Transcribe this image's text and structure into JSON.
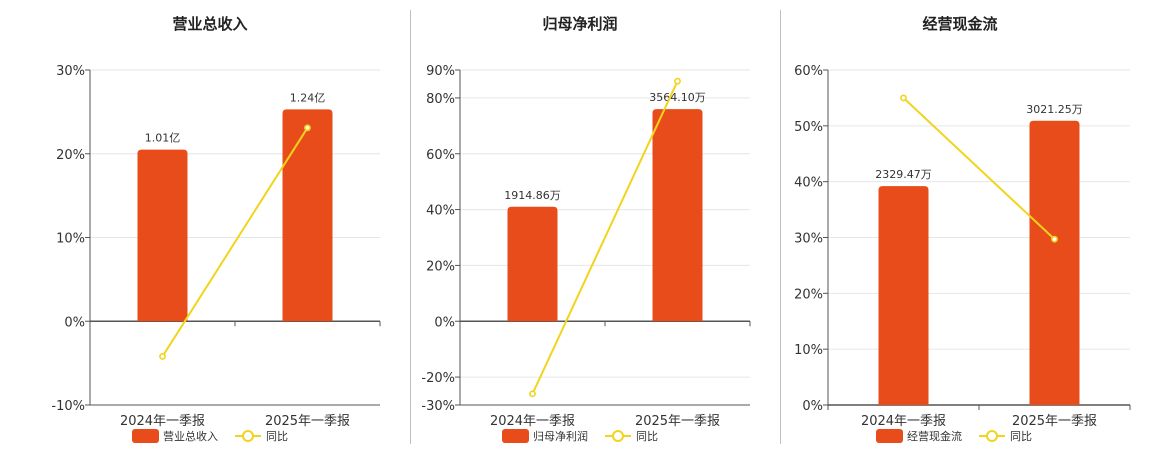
{
  "colors": {
    "bar": "#e84c1a",
    "line": "#f2d41c",
    "axis": "#555555",
    "grid": "#e6e6e6"
  },
  "chart_data": [
    {
      "type": "bar",
      "title": "营业总收入",
      "categories": [
        "2024年一季报",
        "2025年一季报"
      ],
      "series": [
        {
          "name": "营业总收入",
          "type": "bar",
          "values": [
            20.5,
            25.3
          ],
          "labels": [
            "1.01亿",
            "1.24亿"
          ]
        },
        {
          "name": "同比",
          "type": "line",
          "values": [
            -4.2,
            23.1
          ]
        }
      ],
      "ylim": [
        -10,
        30
      ],
      "yticks": [
        -10,
        0,
        10,
        20,
        30
      ],
      "ytick_labels": [
        "-10%",
        "0%",
        "10%",
        "20%",
        "30%"
      ],
      "grid": true,
      "legend": "bottom"
    },
    {
      "type": "bar",
      "title": "归母净利润",
      "categories": [
        "2024年一季报",
        "2025年一季报"
      ],
      "series": [
        {
          "name": "归母净利润",
          "type": "bar",
          "values": [
            41,
            76
          ],
          "labels": [
            "1914.86万",
            "3564.10万"
          ]
        },
        {
          "name": "同比",
          "type": "line",
          "values": [
            -26,
            86
          ]
        }
      ],
      "ylim": [
        -30,
        90
      ],
      "yticks": [
        -30,
        -20,
        0,
        20,
        40,
        60,
        80,
        90
      ],
      "ytick_labels": [
        "-30%",
        "-20%",
        "0%",
        "20%",
        "40%",
        "60%",
        "80%",
        "90%"
      ],
      "grid": true,
      "legend": "bottom"
    },
    {
      "type": "bar",
      "title": "经营现金流",
      "categories": [
        "2024年一季报",
        "2025年一季报"
      ],
      "series": [
        {
          "name": "经营现金流",
          "type": "bar",
          "values": [
            39.2,
            50.9
          ],
          "labels": [
            "2329.47万",
            "3021.25万"
          ]
        },
        {
          "name": "同比",
          "type": "line",
          "values": [
            55,
            29.7
          ]
        }
      ],
      "ylim": [
        0,
        60
      ],
      "yticks": [
        0,
        10,
        20,
        30,
        40,
        50,
        60
      ],
      "ytick_labels": [
        "0%",
        "10%",
        "20%",
        "30%",
        "40%",
        "50%",
        "60%"
      ],
      "grid": true,
      "legend": "bottom"
    }
  ]
}
